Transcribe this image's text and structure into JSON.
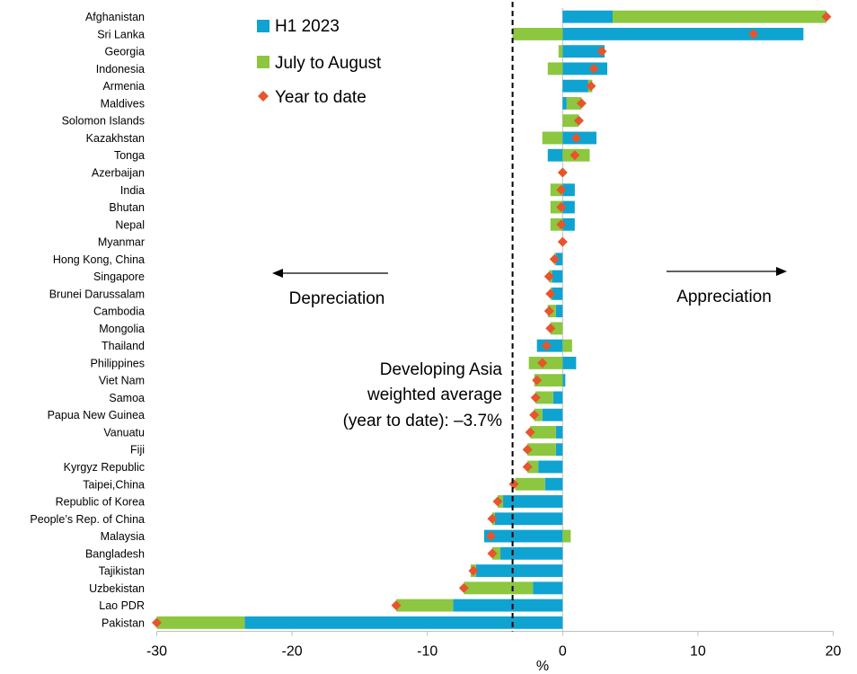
{
  "chart_data": {
    "type": "bar",
    "orientation": "horizontal",
    "stacked": true,
    "categories": [
      "Afghanistan",
      "Sri Lanka",
      "Georgia",
      "Indonesia",
      "Armenia",
      "Maldives",
      "Solomon Islands",
      "Kazakhstan",
      "Tonga",
      "Azerbaijan",
      "India",
      "Bhutan",
      "Nepal",
      "Myanmar",
      "Hong Kong, China",
      "Singapore",
      "Brunei Darussalam",
      "Cambodia",
      "Mongolia",
      "Thailand",
      "Philippines",
      "Viet Nam",
      "Samoa",
      "Papua New Guinea",
      "Vanuatu",
      "Fiji",
      "Kyrgyz Republic",
      "Taipei,China",
      "Republic of Korea",
      "People’s Rep. of China",
      "Malaysia",
      "Bangladesh",
      "Tajikistan",
      "Uzbekistan",
      "Lao PDR",
      "Pakistan"
    ],
    "series": [
      {
        "name": "H1 2023",
        "color": "#0fa3d1",
        "kind": "bar",
        "values": [
          3.7,
          17.8,
          3.1,
          3.3,
          1.9,
          0.3,
          0,
          2.5,
          -1.1,
          0,
          0.9,
          0.9,
          0.9,
          0,
          -0.5,
          -0.8,
          -0.8,
          -0.5,
          0,
          -1.9,
          1.0,
          0.2,
          -0.7,
          -1.5,
          -0.5,
          -0.5,
          -1.8,
          -1.3,
          -4.4,
          -5.0,
          -5.8,
          -4.6,
          -6.4,
          -2.2,
          -8.1,
          -23.5
        ]
      },
      {
        "name": "July to August",
        "color": "#8dc63f",
        "kind": "bar",
        "values": [
          15.8,
          -3.7,
          -0.3,
          -1.1,
          0.3,
          1.1,
          1.2,
          -1.5,
          2.0,
          0,
          -0.9,
          -0.9,
          -0.9,
          0,
          -0.1,
          -0.2,
          -0.1,
          -0.6,
          -0.9,
          0.7,
          -2.5,
          -2.1,
          -1.3,
          -0.6,
          -1.9,
          -2.1,
          -0.8,
          -2.2,
          -0.4,
          -0.2,
          0.6,
          -0.6,
          -0.4,
          -5.1,
          -4.2,
          -6.5
        ]
      },
      {
        "name": "Year to date",
        "color": "#e8542b",
        "kind": "marker",
        "values": [
          19.5,
          14.1,
          2.9,
          2.3,
          2.1,
          1.4,
          1.2,
          1.0,
          0.9,
          0,
          -0.1,
          -0.1,
          -0.1,
          0,
          -0.6,
          -1.0,
          -0.9,
          -1.0,
          -0.9,
          -1.2,
          -1.5,
          -1.9,
          -2.0,
          -2.1,
          -2.4,
          -2.6,
          -2.6,
          -3.6,
          -4.8,
          -5.2,
          -5.3,
          -5.2,
          -6.6,
          -7.3,
          -12.3,
          -30.0
        ]
      }
    ],
    "xlim": [
      -30,
      20
    ],
    "xticks": [
      -30,
      -20,
      -10,
      0,
      10,
      20
    ],
    "xlabel": "%",
    "reference_line": {
      "value": -3.7,
      "style": "dashed"
    },
    "annotations": {
      "reference_lines": [
        "Developing Asia",
        "weighted average",
        "(year to date): –3.7%"
      ],
      "depreciation": "Depreciation",
      "appreciation": "Appreciation"
    },
    "legend": {
      "placement": "top-center"
    },
    "grid": false
  }
}
